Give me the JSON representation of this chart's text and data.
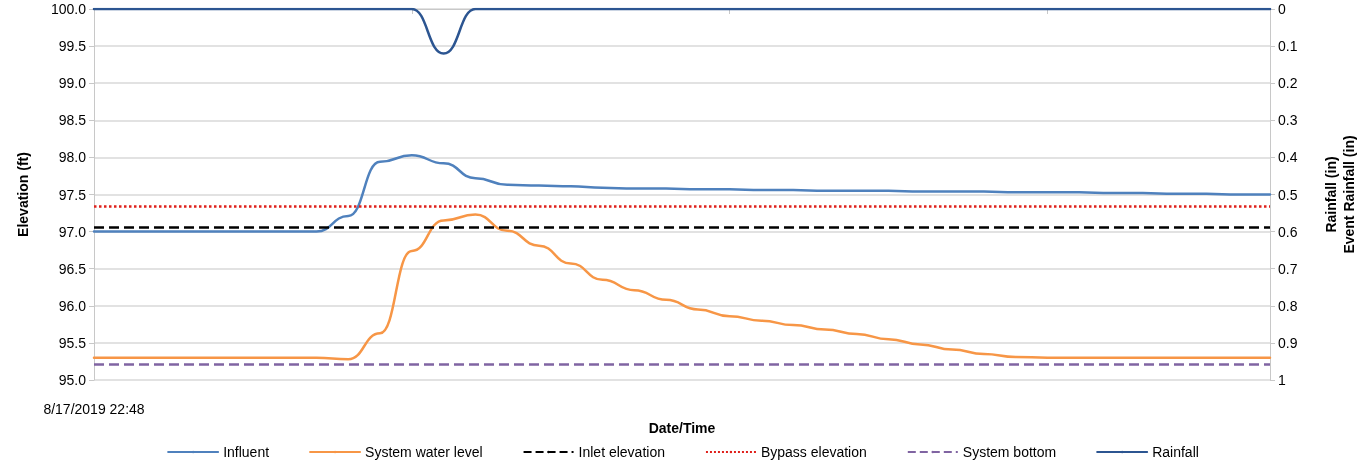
{
  "chart_data": {
    "type": "line",
    "xlabel": "Date/Time",
    "ylabel": "Elevation (ft)",
    "y2label": "Rainfall (in)\nEvent Rainfall (in)",
    "categories": [
      "8/17/2019 22:48",
      null,
      null,
      null,
      null,
      null,
      null,
      null,
      null,
      null,
      null,
      null,
      null,
      null,
      null,
      null,
      null,
      null,
      null,
      null,
      null,
      null,
      null,
      null,
      null,
      null,
      null,
      null,
      null,
      null,
      null,
      null,
      null,
      null,
      null,
      null,
      null,
      null
    ],
    "series": [
      {
        "name": "Influent",
        "color": "#4f81bd",
        "values": [
          97.0,
          97.0,
          97.0,
          97.0,
          97.0,
          97.0,
          97.0,
          97.0,
          97.21,
          97.94,
          98.03,
          97.92,
          97.72,
          97.63,
          97.62,
          97.61,
          97.59,
          97.58,
          97.58,
          97.57,
          97.57,
          97.56,
          97.56,
          97.55,
          97.55,
          97.55,
          97.54,
          97.54,
          97.54,
          97.53,
          97.53,
          97.53,
          97.52,
          97.52,
          97.51,
          97.51,
          97.5,
          97.5
        ]
      },
      {
        "name": "System water level",
        "color": "#f79646",
        "values": [
          95.3,
          95.3,
          95.3,
          95.3,
          95.3,
          95.3,
          95.3,
          95.3,
          95.28,
          95.63,
          96.74,
          97.15,
          97.23,
          97.01,
          96.81,
          96.57,
          96.35,
          96.21,
          96.08,
          95.95,
          95.86,
          95.8,
          95.74,
          95.68,
          95.62,
          95.55,
          95.48,
          95.41,
          95.35,
          95.31,
          95.3,
          95.3,
          95.3,
          95.3,
          95.3,
          95.3,
          95.3,
          95.3
        ]
      },
      {
        "name": "Rainfall",
        "color": "#2c5591",
        "axis": "y2",
        "values": [
          0,
          0,
          0,
          0,
          0,
          0,
          0,
          0,
          0,
          0,
          0,
          0.12,
          0,
          0,
          0,
          0,
          0,
          0,
          0,
          0,
          0,
          0,
          0,
          0,
          0,
          0,
          0,
          0,
          0,
          0,
          0,
          0,
          0,
          0,
          0,
          0,
          0,
          0
        ]
      }
    ],
    "ref_lines": [
      {
        "axis": "y",
        "value": 97.06,
        "label": "Inlet elevation",
        "color": "#000000",
        "line_style": "dashed"
      },
      {
        "axis": "y",
        "value": 97.34,
        "label": "Bypass elevation",
        "color": "#e0201b",
        "line_style": "dotted"
      },
      {
        "axis": "y",
        "value": 95.21,
        "label": "System bottom",
        "color": "#8064a2",
        "line_style": "dashed"
      }
    ],
    "ylim": [
      95,
      100
    ],
    "yticks": [
      {
        "value": 95,
        "label": "95.0"
      },
      {
        "value": 95.5,
        "label": "95.5"
      },
      {
        "value": 96,
        "label": "96.0"
      },
      {
        "value": 96.5,
        "label": "96.5"
      },
      {
        "value": 97,
        "label": "97.0"
      },
      {
        "value": 97.5,
        "label": "97.5"
      },
      {
        "value": 98,
        "label": "98.0"
      },
      {
        "value": 98.5,
        "label": "98.5"
      },
      {
        "value": 99,
        "label": "99.0"
      },
      {
        "value": 99.5,
        "label": "99.5"
      },
      {
        "value": 100,
        "label": "100.0"
      }
    ],
    "y2lim": [
      1,
      0
    ],
    "y2ticks": [
      0,
      0.1,
      0.2,
      0.3,
      0.4,
      0.5,
      0.6,
      0.7,
      0.8,
      0.9,
      1
    ],
    "grid": "y",
    "legend": "bottom",
    "marker": "none",
    "line_style": "solid"
  }
}
